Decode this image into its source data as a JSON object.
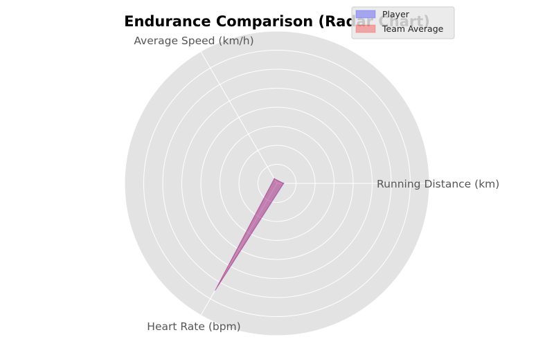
{
  "chart_data": {
    "type": "radar",
    "title": "Endurance Comparison (Radar Chart)",
    "axes": [
      "Running Distance (km)",
      "Average Speed (km/h)",
      "Heart Rate (bpm)"
    ],
    "rmax": 200,
    "ring_count": 8,
    "grid": true,
    "legend_position": "top-right",
    "series": [
      {
        "name": "Player",
        "values": [
          8.9,
          7.2,
          162
        ],
        "color": "#0000ff"
      },
      {
        "name": "Team Average",
        "values": [
          8.1,
          6.9,
          160
        ],
        "color": "#ff0000"
      }
    ]
  }
}
